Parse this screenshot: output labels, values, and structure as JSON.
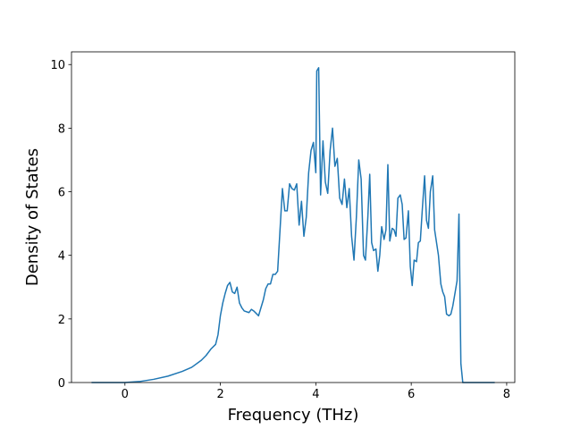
{
  "chart_data": {
    "type": "line",
    "xlabel": "Frequency (THz)",
    "ylabel": "Density of States",
    "color": "#1f77b4",
    "x": [
      -0.7,
      0,
      0.3,
      0.6,
      0.9,
      1.2,
      1.4,
      1.6,
      1.7,
      1.8,
      1.9,
      1.95,
      2.0,
      2.05,
      2.1,
      2.15,
      2.2,
      2.25,
      2.3,
      2.35,
      2.4,
      2.45,
      2.5,
      2.6,
      2.65,
      2.7,
      2.8,
      2.85,
      2.9,
      2.95,
      3.0,
      3.05,
      3.1,
      3.15,
      3.2,
      3.25,
      3.3,
      3.35,
      3.4,
      3.45,
      3.5,
      3.55,
      3.6,
      3.65,
      3.7,
      3.75,
      3.8,
      3.85,
      3.9,
      3.95,
      4.0,
      4.02,
      4.06,
      4.1,
      4.15,
      4.2,
      4.25,
      4.3,
      4.35,
      4.4,
      4.45,
      4.5,
      4.55,
      4.6,
      4.65,
      4.7,
      4.75,
      4.8,
      4.85,
      4.9,
      4.95,
      5.0,
      5.04,
      5.09,
      5.13,
      5.17,
      5.21,
      5.26,
      5.3,
      5.34,
      5.38,
      5.43,
      5.47,
      5.51,
      5.55,
      5.6,
      5.64,
      5.68,
      5.72,
      5.77,
      5.81,
      5.85,
      5.89,
      5.94,
      5.98,
      6.02,
      6.06,
      6.11,
      6.15,
      6.19,
      6.23,
      6.28,
      6.32,
      6.36,
      6.4,
      6.45,
      6.49,
      6.53,
      6.57,
      6.62,
      6.66,
      6.7,
      6.74,
      6.79,
      6.83,
      6.87,
      6.91,
      6.96,
      7.0,
      7.04,
      7.08,
      7.75
    ],
    "values": [
      0,
      0,
      0.03,
      0.1,
      0.2,
      0.35,
      0.48,
      0.7,
      0.85,
      1.05,
      1.2,
      1.5,
      2.1,
      2.5,
      2.8,
      3.05,
      3.15,
      2.85,
      2.8,
      3.0,
      2.5,
      2.35,
      2.25,
      2.2,
      2.3,
      2.25,
      2.1,
      2.35,
      2.6,
      2.95,
      3.1,
      3.1,
      3.4,
      3.4,
      3.5,
      4.8,
      6.1,
      5.4,
      5.4,
      6.25,
      6.1,
      6.05,
      6.25,
      4.95,
      5.7,
      4.6,
      5.2,
      6.6,
      7.3,
      7.55,
      6.6,
      9.8,
      9.9,
      5.9,
      7.6,
      6.3,
      5.95,
      7.3,
      8.0,
      6.8,
      7.05,
      5.8,
      5.6,
      6.4,
      5.5,
      6.1,
      4.6,
      3.85,
      5.2,
      7.0,
      6.4,
      4.0,
      3.85,
      5.2,
      6.55,
      4.4,
      4.15,
      4.2,
      3.5,
      4.0,
      4.9,
      4.5,
      4.8,
      6.85,
      4.45,
      4.85,
      4.8,
      4.6,
      5.8,
      5.9,
      5.6,
      4.5,
      4.55,
      5.4,
      3.65,
      3.05,
      3.85,
      3.8,
      4.4,
      4.45,
      5.4,
      6.5,
      5.1,
      4.85,
      6.0,
      6.5,
      4.8,
      4.4,
      4.0,
      3.1,
      2.85,
      2.7,
      2.15,
      2.1,
      2.15,
      2.4,
      2.75,
      3.2,
      5.3,
      0.6,
      0,
      0
    ],
    "xlim": [
      -1.12,
      8.17
    ],
    "xticks": [
      0,
      2,
      4,
      6,
      8
    ],
    "ylim": [
      0,
      10.4
    ],
    "yticks": [
      0,
      2,
      4,
      6,
      8,
      10
    ]
  }
}
